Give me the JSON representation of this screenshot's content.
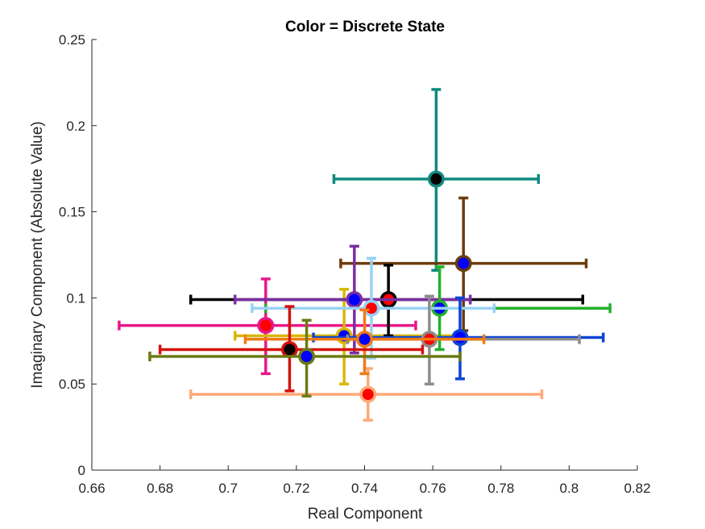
{
  "chart_data": {
    "type": "scatter",
    "title": "Color = Discrete State",
    "xlabel": "Real Component",
    "ylabel": "Imaginary Component (Absolute Value)",
    "xlim": [
      0.66,
      0.82
    ],
    "ylim": [
      0,
      0.25
    ],
    "xticks": [
      "0.66",
      "0.68",
      "0.7",
      "0.72",
      "0.74",
      "0.76",
      "0.78",
      "0.8",
      "0.82"
    ],
    "yticks": [
      "0",
      "0.05",
      "0.1",
      "0.15",
      "0.2",
      "0.25"
    ],
    "grid": false,
    "series": [
      {
        "color": "#e8178a",
        "x": 0.711,
        "y": 0.084,
        "xerr": [
          0.668,
          0.755
        ],
        "yerr": [
          0.056,
          0.111
        ],
        "dot": "#ff0000"
      },
      {
        "color": "#ffa979",
        "x": 0.741,
        "y": 0.044,
        "xerr": [
          0.689,
          0.792
        ],
        "yerr": [
          0.029,
          0.059
        ],
        "dot": "#ff0000"
      },
      {
        "color": "#d9b70a",
        "x": 0.734,
        "y": 0.078,
        "xerr": [
          0.702,
          0.768
        ],
        "yerr": [
          0.05,
          0.105
        ],
        "dot": "#0000ff"
      },
      {
        "color": "#0f8a7e",
        "x": 0.761,
        "y": 0.169,
        "xerr": [
          0.731,
          0.791
        ],
        "yerr": [
          0.116,
          0.221
        ],
        "dot": "#000000"
      },
      {
        "color": "#6b3c0c",
        "x": 0.769,
        "y": 0.12,
        "xerr": [
          0.733,
          0.805
        ],
        "yerr": [
          0.081,
          0.158
        ],
        "dot": "#0000ff"
      },
      {
        "color": "#000000",
        "x": 0.747,
        "y": 0.099,
        "xerr": [
          0.689,
          0.804
        ],
        "yerr": [
          0.078,
          0.119
        ],
        "dot": "#ff0000"
      },
      {
        "color": "#7b2fa1",
        "x": 0.737,
        "y": 0.099,
        "xerr": [
          0.702,
          0.771
        ],
        "yerr": [
          0.068,
          0.13
        ],
        "dot": "#0000ff"
      },
      {
        "color": "#22b02a",
        "x": 0.762,
        "y": 0.094,
        "xerr": [
          0.711,
          0.812
        ],
        "yerr": [
          0.07,
          0.118
        ],
        "dot": "#0000ff"
      },
      {
        "color": "#99d2f5",
        "x": 0.742,
        "y": 0.094,
        "xerr": [
          0.707,
          0.778
        ],
        "yerr": [
          0.065,
          0.123
        ],
        "dot": "#ff0000"
      },
      {
        "color": "#0b44d4",
        "x": 0.768,
        "y": 0.077,
        "xerr": [
          0.725,
          0.81
        ],
        "yerr": [
          0.053,
          0.1
        ],
        "dot": "#0000ff"
      },
      {
        "color": "#8c8c8c",
        "x": 0.759,
        "y": 0.076,
        "xerr": [
          0.735,
          0.803
        ],
        "yerr": [
          0.05,
          0.101
        ],
        "dot": "#ff0000"
      },
      {
        "color": "#f07a15",
        "x": 0.74,
        "y": 0.076,
        "xerr": [
          0.705,
          0.775
        ],
        "yerr": [
          0.056,
          0.093
        ],
        "dot": "#0000ff"
      },
      {
        "color": "#d4120c",
        "x": 0.718,
        "y": 0.07,
        "xerr": [
          0.68,
          0.757
        ],
        "yerr": [
          0.046,
          0.095
        ],
        "dot": "#000000"
      },
      {
        "color": "#6b7a12",
        "x": 0.723,
        "y": 0.066,
        "xerr": [
          0.677,
          0.768
        ],
        "yerr": [
          0.043,
          0.087
        ],
        "dot": "#0000ff"
      }
    ]
  }
}
